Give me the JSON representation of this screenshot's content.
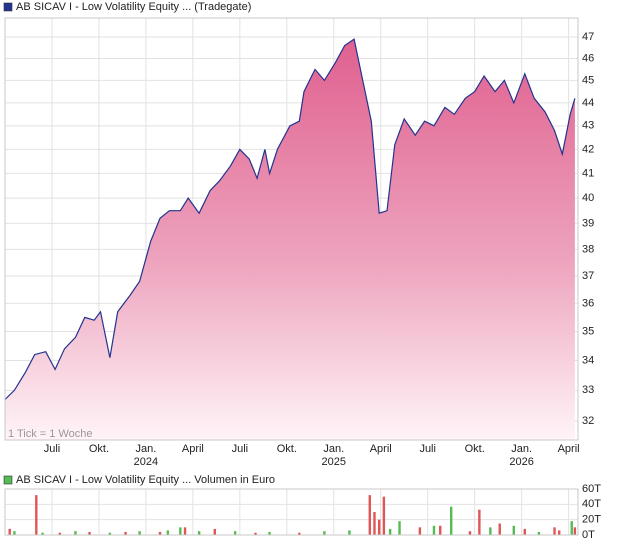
{
  "chart_data": [
    {
      "type": "area",
      "annotation": "1 Tick = 1 Woche",
      "series": [
        {
          "name": "AB SICAV I - Low Volatility Equity ... (Tradegate)",
          "color": "#23338f",
          "x": [
            -9.0,
            -8.4,
            -7.7,
            -7.1,
            -6.4,
            -5.8,
            -5.2,
            -4.5,
            -3.9,
            -3.3,
            -2.9,
            -2.3,
            -1.8,
            -1.0,
            -0.4,
            0.3,
            0.9,
            1.5,
            2.2,
            2.7,
            3.4,
            4.1,
            4.7,
            5.4,
            6.0,
            6.6,
            7.1,
            7.6,
            7.9,
            8.4,
            9.2,
            9.8,
            10.1,
            10.8,
            11.4,
            12.1,
            12.7,
            13.3,
            14.0,
            14.4,
            14.9,
            15.4,
            15.9,
            16.5,
            17.2,
            17.8,
            18.4,
            19.1,
            19.7,
            20.4,
            21.0,
            21.6,
            22.3,
            22.9,
            23.5,
            24.2,
            24.8,
            25.5,
            26.1,
            26.6,
            27.1,
            27.4
          ],
          "values": [
            32.7,
            33.0,
            33.6,
            34.2,
            34.3,
            33.7,
            34.4,
            34.8,
            35.5,
            35.4,
            35.7,
            34.1,
            35.7,
            36.3,
            36.8,
            38.3,
            39.2,
            39.5,
            39.5,
            40.0,
            39.4,
            40.3,
            40.7,
            41.3,
            42.0,
            41.6,
            40.8,
            42.0,
            41.0,
            42.0,
            43.0,
            43.2,
            44.5,
            45.5,
            45.0,
            45.8,
            46.6,
            46.9,
            44.5,
            43.2,
            39.4,
            39.5,
            42.2,
            43.3,
            42.6,
            43.2,
            43.0,
            43.8,
            43.5,
            44.2,
            44.5,
            45.2,
            44.5,
            45.0,
            44.0,
            45.3,
            44.2,
            43.6,
            42.8,
            41.8,
            43.5,
            44.2
          ]
        }
      ],
      "ylog": true,
      "ylim": [
        31.4,
        47.9
      ],
      "yticks": [
        32,
        33,
        34,
        35,
        36,
        37,
        38,
        39,
        40,
        41,
        42,
        43,
        44,
        45,
        46,
        47
      ],
      "xlim": [
        -9.0,
        27.6
      ],
      "xticks": [
        {
          "value": -6,
          "label": "Juli"
        },
        {
          "value": -3,
          "label": "Okt."
        },
        {
          "value": 0,
          "label": "Jan."
        },
        {
          "value": 3,
          "label": "April"
        },
        {
          "value": 6,
          "label": "Juli"
        },
        {
          "value": 9,
          "label": "Okt."
        },
        {
          "value": 12,
          "label": "Jan."
        },
        {
          "value": 15,
          "label": "April"
        },
        {
          "value": 18,
          "label": "Juli"
        },
        {
          "value": 21,
          "label": "Okt."
        },
        {
          "value": 24,
          "label": "Jan."
        },
        {
          "value": 27,
          "label": "April"
        }
      ],
      "xyears": [
        {
          "value": 0,
          "label": "2024"
        },
        {
          "value": 12,
          "label": "2025"
        },
        {
          "value": 24,
          "label": "2026"
        }
      ],
      "grid": true
    },
    {
      "type": "bar",
      "series": [
        {
          "name": "AB SICAV I - Low Volatility Equity ... Volumen in Euro",
          "color": "#55bb55",
          "x": [
            -8.7,
            -8.4,
            -7.0,
            -6.6,
            -5.5,
            -4.5,
            -3.6,
            -2.3,
            -1.3,
            -0.4,
            0.9,
            1.4,
            2.2,
            2.5,
            3.4,
            4.4,
            5.7,
            7.0,
            7.9,
            9.8,
            11.4,
            13.0,
            14.3,
            14.6,
            14.9,
            15.2,
            15.6,
            16.2,
            17.5,
            18.4,
            18.8,
            19.5,
            20.7,
            21.3,
            22.0,
            22.6,
            23.5,
            24.2,
            25.1,
            26.1,
            26.4,
            27.2,
            27.4
          ],
          "values": [
            8,
            5,
            52,
            3,
            3,
            5,
            4,
            3,
            4,
            5,
            4,
            6,
            10,
            10,
            5,
            8,
            5,
            3,
            4,
            3,
            5,
            6,
            52,
            30,
            20,
            50,
            8,
            18,
            10,
            12,
            12,
            37,
            5,
            33,
            10,
            15,
            12,
            8,
            4,
            10,
            6,
            18,
            10
          ],
          "colors": [
            "#e05555",
            "#55bb55",
            "#e05555",
            "#55bb55",
            "#e05555",
            "#55bb55",
            "#e05555",
            "#55bb55",
            "#e05555",
            "#55bb55",
            "#e05555",
            "#55bb55",
            "#55bb55",
            "#e05555",
            "#55bb55",
            "#e05555",
            "#55bb55",
            "#e05555",
            "#55bb55",
            "#e05555",
            "#55bb55",
            "#55bb55",
            "#e05555",
            "#e05555",
            "#e05555",
            "#e05555",
            "#55bb55",
            "#55bb55",
            "#e05555",
            "#55bb55",
            "#e05555",
            "#55bb55",
            "#e05555",
            "#e05555",
            "#55bb55",
            "#e05555",
            "#55bb55",
            "#e05555",
            "#55bb55",
            "#e05555",
            "#e05555",
            "#55bb55",
            "#e05555"
          ]
        }
      ],
      "ylim": [
        0,
        60
      ],
      "yticks": [
        {
          "value": 0,
          "label": "0T"
        },
        {
          "value": 20,
          "label": "20T"
        },
        {
          "value": 40,
          "label": "40T"
        },
        {
          "value": 60,
          "label": "60T"
        }
      ],
      "xlim": [
        -9.0,
        27.6
      ],
      "grid": true
    }
  ]
}
